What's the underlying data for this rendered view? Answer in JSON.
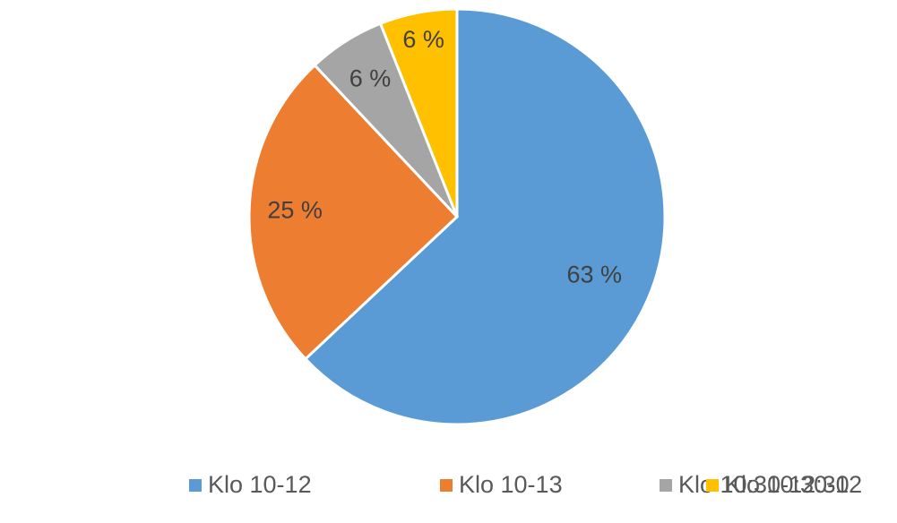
{
  "chart_data": {
    "type": "pie",
    "categories": [
      "Klo 10-12",
      "Klo 10-13",
      "Klo 10:30-12:30",
      "Klo 10:30-12"
    ],
    "values": [
      63,
      25,
      6,
      6
    ],
    "value_labels": [
      "63 %",
      "25 %",
      "6 %",
      "6 %"
    ],
    "colors": [
      "#5b9bd5",
      "#ed7d31",
      "#a5a5a5",
      "#ffc000"
    ],
    "legend": "bottom"
  }
}
